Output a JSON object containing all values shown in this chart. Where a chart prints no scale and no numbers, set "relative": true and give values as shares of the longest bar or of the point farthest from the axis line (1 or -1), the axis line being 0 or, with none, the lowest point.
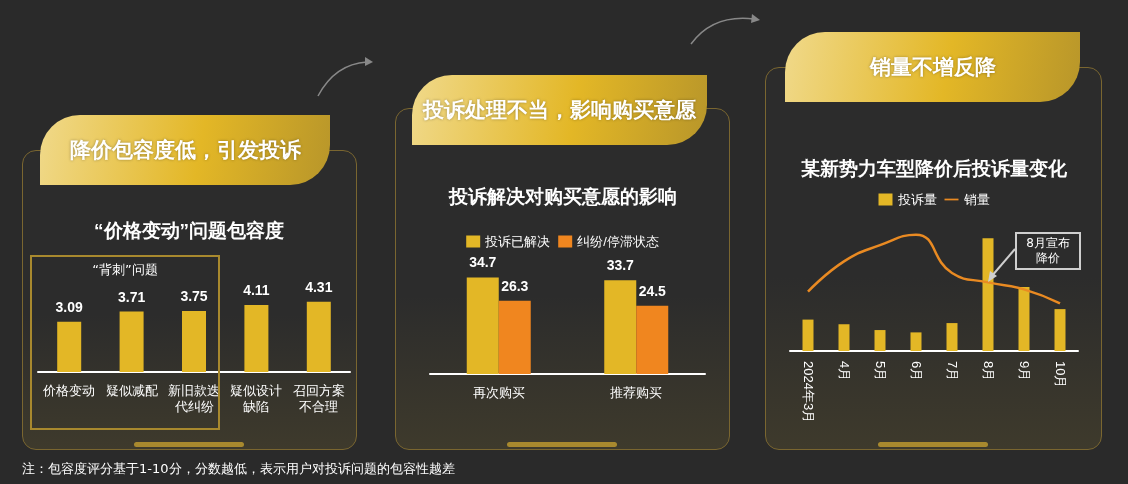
{
  "chart_data": [
    {
      "type": "bar",
      "subtitle": "降价包容度低，引发投诉",
      "title": "“价格变动”问题包容度",
      "categories": [
        "价格变动",
        "疑似减配",
        "新旧款迭代纠纷",
        "疑似设计缺陷",
        "召回方案不合理"
      ],
      "values": [
        3.09,
        3.71,
        3.75,
        4.11,
        4.31
      ],
      "color": "#e3b726",
      "data_labels": true,
      "tick_labels": "x",
      "annotations": [
        "“背刺”问题",
        "注：包容度评分基于1-10分，分数越低，表示用户对投诉问题的包容性越差"
      ]
    },
    {
      "type": "bar",
      "subtitle": "投诉处理不当，影响购买意愿",
      "title": "投诉解决对购买意愿的影响",
      "categories": [
        "再次购买",
        "推荐购买"
      ],
      "data_labels": true,
      "legend": "top",
      "tick_labels": "x",
      "series": [
        {
          "name": "投诉已解决",
          "color": "#e3b726",
          "values": [
            34.7,
            33.7
          ]
        },
        {
          "name": "纠纷/停滞状态",
          "color": "#f0861f",
          "values": [
            26.3,
            24.5
          ]
        }
      ]
    },
    {
      "type": "bar",
      "subtitle": "销量不增反降",
      "title": "某新势力车型降价后投诉量变化",
      "categories": [
        "2024年3月",
        "4月",
        "5月",
        "6月",
        "7月",
        "8月",
        "9月",
        "10月"
      ],
      "relative": true,
      "legend": "top",
      "marker": "none",
      "series": [
        {
          "name": "投诉量",
          "color": "#e3b726",
          "values": [
            0.27,
            0.23,
            0.18,
            0.16,
            0.24,
            0.97,
            0.55,
            0.36
          ]
        },
        {
          "name": "销量",
          "type": "line",
          "color": "#e98a22",
          "values": [
            0.51,
            0.77,
            0.91,
            1,
            0.67,
            0.59,
            0.53,
            0.41
          ]
        }
      ],
      "annotations": [
        {
          "text": "8月宣布降价",
          "x": "8月",
          "y": 0.59
        }
      ]
    }
  ]
}
